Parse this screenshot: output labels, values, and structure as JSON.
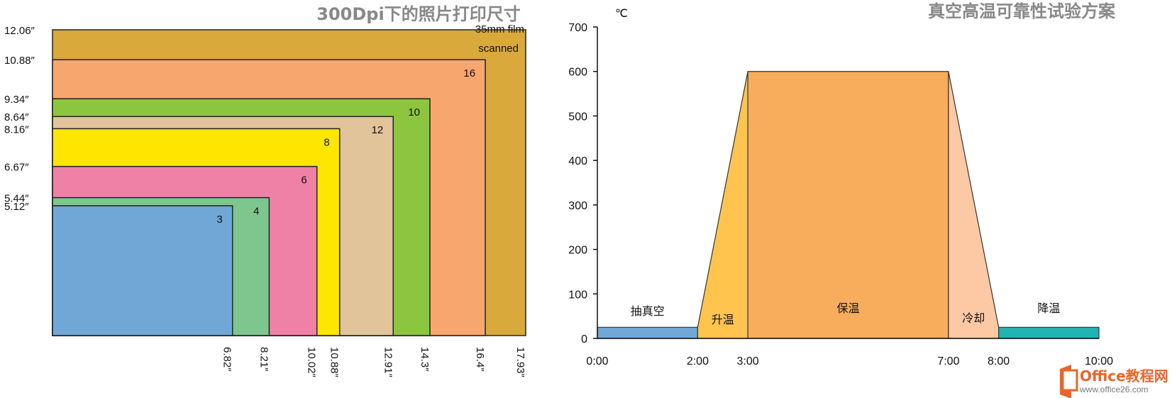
{
  "chart_data": [
    {
      "type": "nested-rectangles",
      "title": "300Dpi下的照片打印尺寸",
      "sizes": [
        {
          "label": "3",
          "width": "6.82″",
          "height": "5.12″",
          "w": 6.82,
          "h": 5.12,
          "color": "#6fa8d6"
        },
        {
          "label": "4",
          "width": "8.21″",
          "height": "5.44″",
          "w": 8.21,
          "h": 5.44,
          "color": "#7dc68e"
        },
        {
          "label": "6",
          "width": "10.02″",
          "height": "6.67″",
          "w": 10.02,
          "h": 6.67,
          "color": "#f081a6"
        },
        {
          "label": "8",
          "width": "10.88″",
          "height": "8.16″",
          "w": 10.88,
          "h": 8.16,
          "color": "#ffe600"
        },
        {
          "label": "12",
          "width": "12.91″",
          "height": "8.64″",
          "w": 12.91,
          "h": 8.64,
          "color": "#e2c49a"
        },
        {
          "label": "10",
          "width": "14.3″",
          "height": "9.34″",
          "w": 14.3,
          "h": 9.34,
          "color": "#8cc63f"
        },
        {
          "label": "16",
          "width": "16.4″",
          "height": "10.88″",
          "w": 16.4,
          "h": 10.88,
          "color": "#f7a66e"
        },
        {
          "label": "35mm film scanned",
          "width": "17.93″",
          "height": "12.06″",
          "w": 17.93,
          "h": 12.06,
          "color": "#d9a93c"
        }
      ]
    },
    {
      "type": "area",
      "title": "真空高温可靠性试验方案",
      "ylabel": "℃",
      "ylim": [
        0,
        700
      ],
      "yticks": [
        "0",
        "100",
        "200",
        "300",
        "400",
        "500",
        "600",
        "700"
      ],
      "xlim": [
        0,
        10
      ],
      "xticks": [
        {
          "x": 0,
          "label": "0:00"
        },
        {
          "x": 2,
          "label": "2:00"
        },
        {
          "x": 3,
          "label": "3:00"
        },
        {
          "x": 7,
          "label": "7:00"
        },
        {
          "x": 8,
          "label": "8:00"
        },
        {
          "x": 10,
          "label": "10:00"
        }
      ],
      "phases": [
        {
          "name": "抽真空",
          "x0": 0,
          "x1": 2,
          "y0": 25,
          "y1": 25,
          "color": "#6fa8d6"
        },
        {
          "name": "升温",
          "x0": 2,
          "x1": 3,
          "y0": 25,
          "y1": 600,
          "color": "#ffc44d"
        },
        {
          "name": "保温",
          "x0": 3,
          "x1": 7,
          "y0": 600,
          "y1": 600,
          "color": "#f8ad5c"
        },
        {
          "name": "冷却",
          "x0": 7,
          "x1": 8,
          "y0": 600,
          "y1": 25,
          "color": "#fcc9a4"
        },
        {
          "name": "降温",
          "x0": 8,
          "x1": 10,
          "y0": 25,
          "y1": 25,
          "color": "#21b3b3"
        }
      ]
    }
  ],
  "watermark": {
    "brand": "Office教程网",
    "url": "www.office26.com"
  }
}
